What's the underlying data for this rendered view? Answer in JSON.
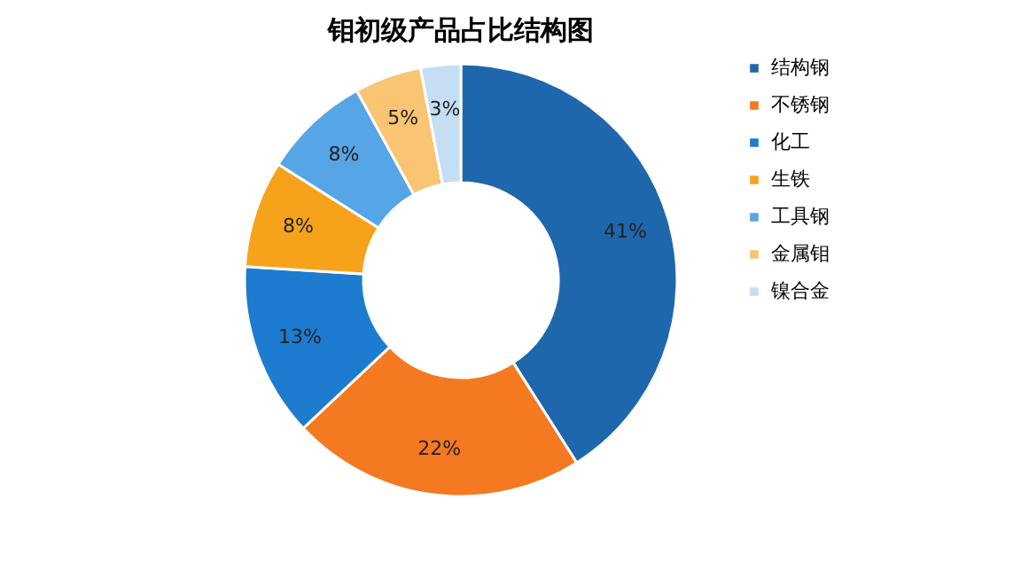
{
  "chart_data": {
    "type": "donut",
    "title": "钼初级产品占比结构图",
    "categories": [
      "结构钢",
      "不锈钢",
      "化工",
      "生铁",
      "工具钢",
      "金属钼",
      "镍合金"
    ],
    "values": [
      41,
      22,
      13,
      8,
      8,
      5,
      3
    ],
    "value_labels": [
      "41%",
      "22%",
      "13%",
      "8%",
      "8%",
      "5%",
      "3%"
    ],
    "colors": [
      "#1f67ad",
      "#f47920",
      "#1d7ccf",
      "#f7a21b",
      "#56a5e6",
      "#f9c572",
      "#c5def4"
    ],
    "legend": "right"
  }
}
